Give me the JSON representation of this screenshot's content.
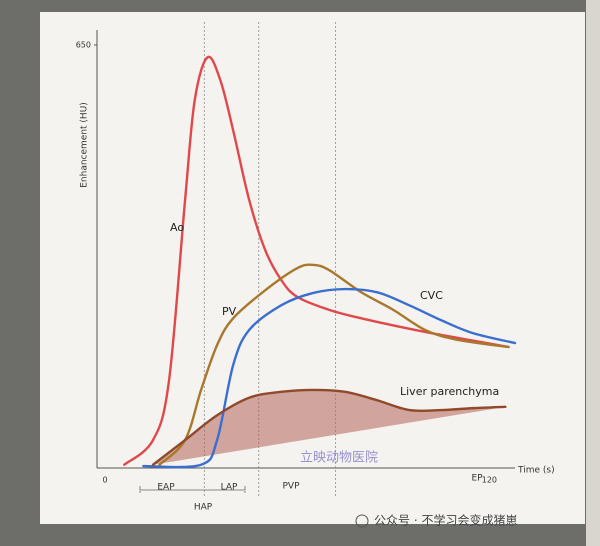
{
  "chart_data": {
    "type": "line",
    "ylabel": "Enhancement (HU)",
    "xlabel": "Time (s)",
    "xlim": [
      -2.5,
      128
    ],
    "xticks": [
      0,
      120
    ],
    "ylim": [
      0,
      673
    ],
    "yticks": [
      650
    ],
    "phase_lines": [
      31,
      48,
      72
    ],
    "phases": [
      "EAP",
      "LAP",
      "HAP",
      "PVP",
      "EP"
    ],
    "series": [
      {
        "name": "Ao",
        "color": "#e0484a",
        "x": [
          6,
          15,
          20,
          25,
          28,
          32,
          36,
          40,
          45,
          50,
          55,
          60,
          70,
          80,
          100,
          126
        ],
        "values": [
          5,
          43,
          135,
          412,
          565,
          631,
          596,
          519,
          412,
          335,
          289,
          263,
          243,
          230,
          209,
          186
        ]
      },
      {
        "name": "PV",
        "color": "#a8782c",
        "x": [
          17,
          25,
          30,
          35,
          40,
          50,
          60,
          65,
          70,
          80,
          90,
          100,
          110,
          126
        ],
        "values": [
          5,
          43,
          120,
          189,
          230,
          273,
          307,
          312,
          304,
          270,
          243,
          212,
          197,
          186
        ]
      },
      {
        "name": "CVC",
        "color": "#3a6fd0",
        "x": [
          12,
          30,
          35,
          40,
          45,
          55,
          65,
          75,
          85,
          95,
          105,
          115,
          128
        ],
        "values": [
          3,
          5,
          43,
          158,
          212,
          250,
          269,
          275,
          270,
          250,
          227,
          207,
          192
        ]
      },
      {
        "name": "Liver parenchyma",
        "color": "#8f4a2c",
        "x": [
          15,
          25,
          35,
          45,
          55,
          65,
          75,
          85,
          95,
          105,
          115,
          125
        ],
        "values": [
          5,
          43,
          81,
          108,
          117,
          120,
          117,
          104,
          89,
          89,
          92,
          94
        ]
      }
    ]
  },
  "watermarks": [
    "立映动物医院",
    "公众号 · 不学习会变成猪崽"
  ]
}
